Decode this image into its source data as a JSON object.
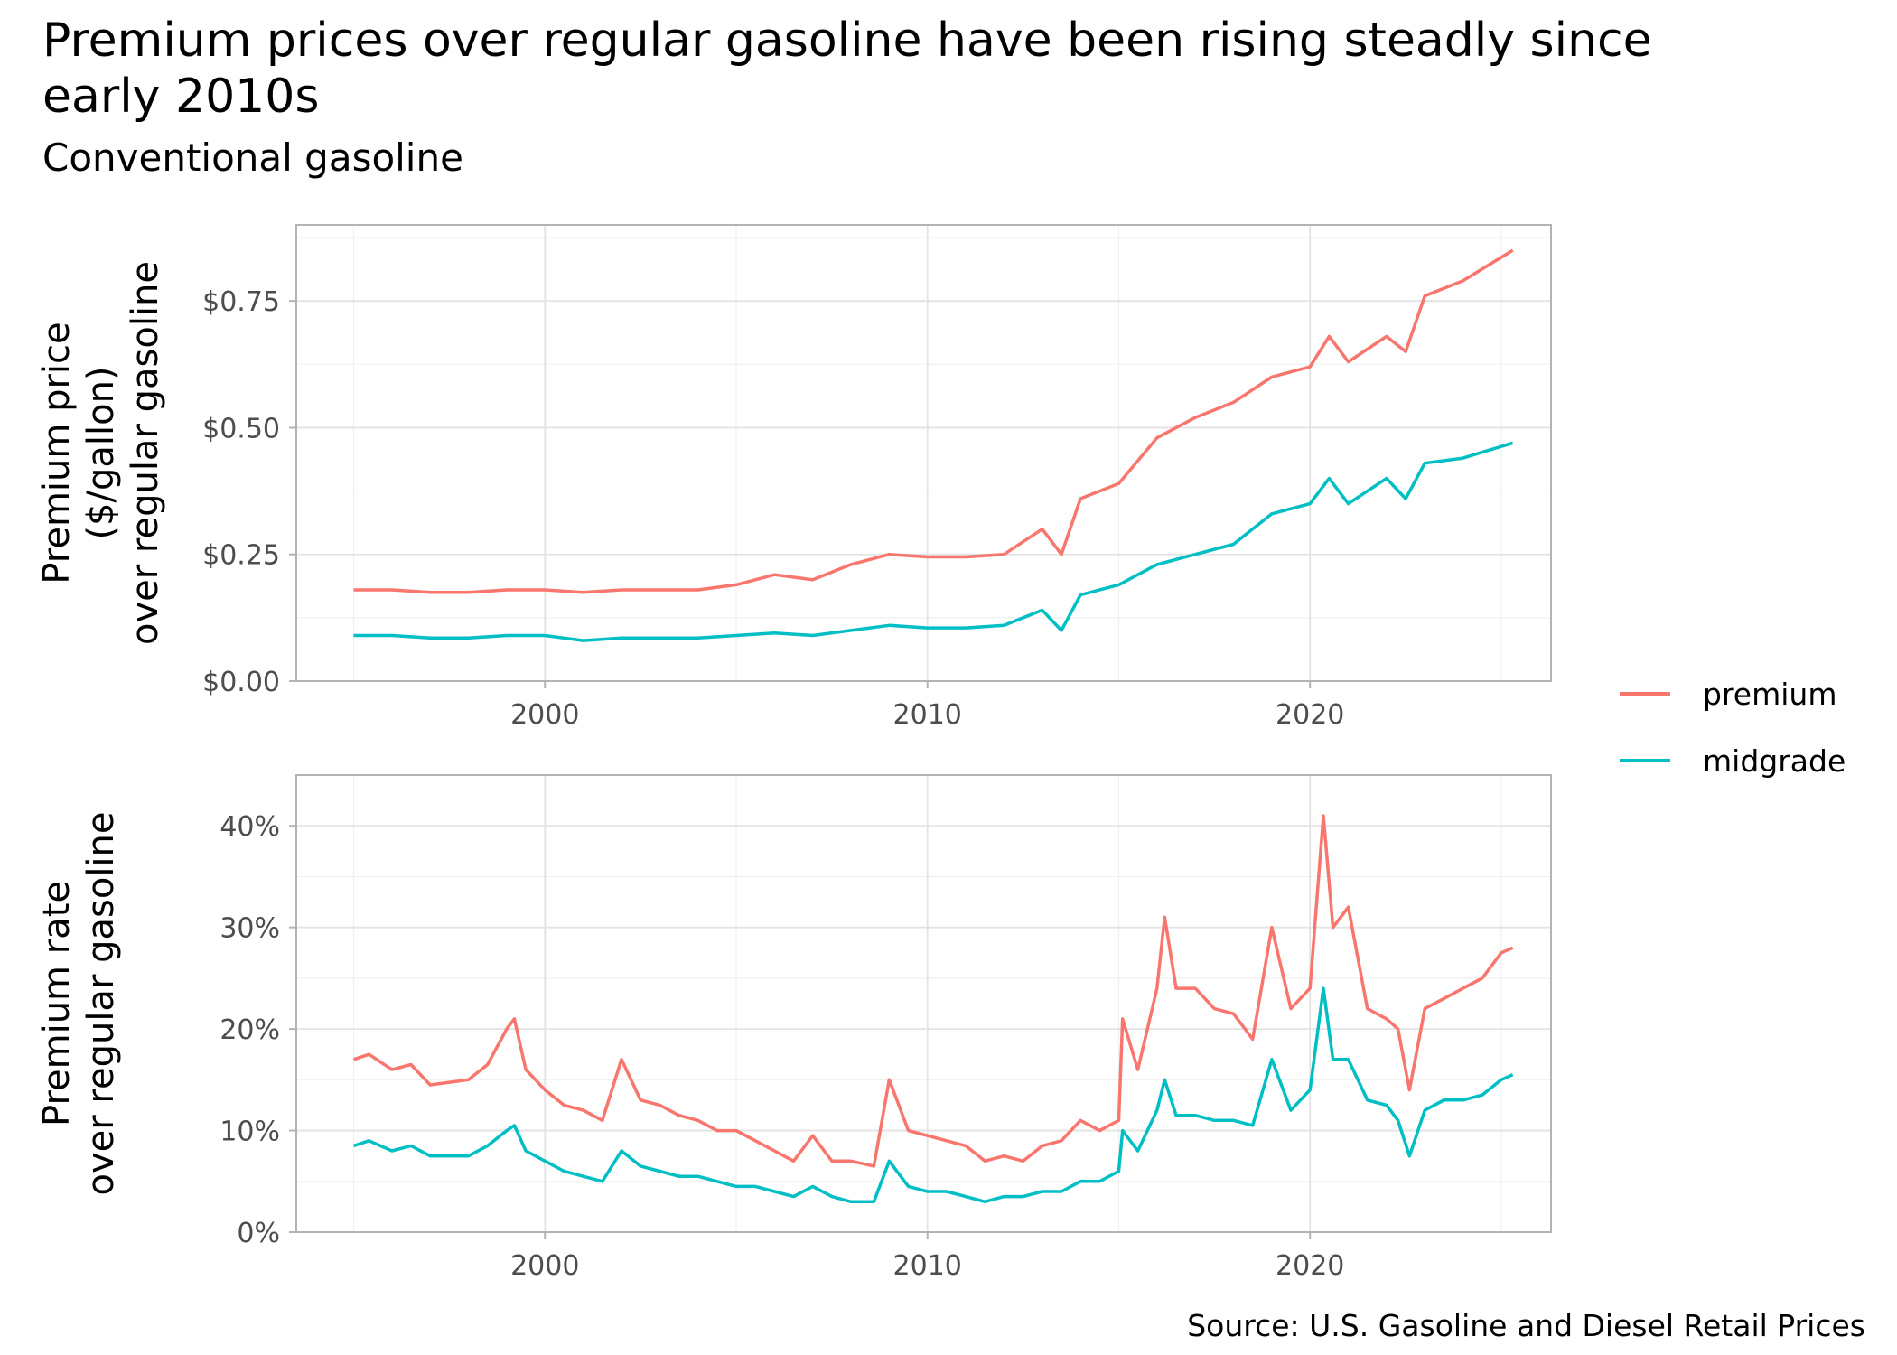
{
  "title": "Premium prices over regular gasoline have been rising steadly since early 2010s",
  "subtitle": "Conventional gasoline",
  "source": "Source: U.S. Gasoline and Diesel Retail Prices",
  "colors": {
    "premium": "#F8766D",
    "midgrade": "#00BFC4"
  },
  "legend": {
    "position": "right",
    "items": [
      "premium",
      "midgrade"
    ]
  },
  "chart_data": [
    {
      "type": "line",
      "ylabel": [
        "Premium price",
        "($/gallon)",
        "over regular gasoline"
      ],
      "xlim": [
        1993.5,
        2026.3
      ],
      "ylim": [
        0,
        0.9
      ],
      "xticks": [
        2000,
        2010,
        2020
      ],
      "xtick_labels": [
        "2000",
        "2010",
        "2020"
      ],
      "yticks": [
        0,
        0.25,
        0.5,
        0.75
      ],
      "ytick_labels": [
        "$0.00",
        "$0.25",
        "$0.50",
        "$0.75"
      ],
      "grid": true,
      "series": [
        {
          "name": "premium",
          "color": "#F8766D",
          "x": [
            1995.0,
            1996.0,
            1997.0,
            1998.0,
            1999.0,
            2000.0,
            2001.0,
            2002.0,
            2003.0,
            2004.0,
            2005.0,
            2006.0,
            2007.0,
            2008.0,
            2009.0,
            2010.0,
            2011.0,
            2012.0,
            2013.0,
            2013.5,
            2014.0,
            2015.0,
            2016.0,
            2017.0,
            2018.0,
            2019.0,
            2020.0,
            2020.5,
            2021.0,
            2022.0,
            2022.5,
            2023.0,
            2024.0,
            2025.3
          ],
          "y": [
            0.18,
            0.18,
            0.175,
            0.175,
            0.18,
            0.18,
            0.175,
            0.18,
            0.18,
            0.18,
            0.19,
            0.21,
            0.2,
            0.23,
            0.25,
            0.245,
            0.245,
            0.25,
            0.3,
            0.25,
            0.36,
            0.39,
            0.48,
            0.52,
            0.55,
            0.6,
            0.62,
            0.68,
            0.63,
            0.68,
            0.65,
            0.76,
            0.79,
            0.85
          ]
        },
        {
          "name": "midgrade",
          "color": "#00BFC4",
          "x": [
            1995.0,
            1996.0,
            1997.0,
            1998.0,
            1999.0,
            2000.0,
            2001.0,
            2002.0,
            2003.0,
            2004.0,
            2005.0,
            2006.0,
            2007.0,
            2008.0,
            2009.0,
            2010.0,
            2011.0,
            2012.0,
            2013.0,
            2013.5,
            2014.0,
            2015.0,
            2016.0,
            2017.0,
            2018.0,
            2019.0,
            2020.0,
            2020.5,
            2021.0,
            2022.0,
            2022.5,
            2023.0,
            2024.0,
            2025.3
          ],
          "y": [
            0.09,
            0.09,
            0.085,
            0.085,
            0.09,
            0.09,
            0.08,
            0.085,
            0.085,
            0.085,
            0.09,
            0.095,
            0.09,
            0.1,
            0.11,
            0.105,
            0.105,
            0.11,
            0.14,
            0.1,
            0.17,
            0.19,
            0.23,
            0.25,
            0.27,
            0.33,
            0.35,
            0.4,
            0.35,
            0.4,
            0.36,
            0.43,
            0.44,
            0.47
          ]
        }
      ]
    },
    {
      "type": "line",
      "ylabel": [
        "Premium rate",
        "over regular gasoline"
      ],
      "xlim": [
        1993.5,
        2026.3
      ],
      "ylim": [
        0,
        45
      ],
      "xticks": [
        2000,
        2010,
        2020
      ],
      "xtick_labels": [
        "2000",
        "2010",
        "2020"
      ],
      "yticks": [
        0,
        10,
        20,
        30,
        40
      ],
      "ytick_labels": [
        "0%",
        "10%",
        "20%",
        "30%",
        "40%"
      ],
      "grid": true,
      "series": [
        {
          "name": "premium",
          "color": "#F8766D",
          "x": [
            1995.0,
            1995.4,
            1996.0,
            1996.5,
            1997.0,
            1998.0,
            1998.5,
            1999.0,
            1999.2,
            1999.5,
            2000.0,
            2000.5,
            2001.0,
            2001.5,
            2002.0,
            2002.5,
            2003.0,
            2003.5,
            2004.0,
            2004.5,
            2005.0,
            2005.5,
            2006.0,
            2006.5,
            2007.0,
            2007.5,
            2008.0,
            2008.6,
            2009.0,
            2009.5,
            2010.0,
            2010.5,
            2011.0,
            2011.5,
            2012.0,
            2012.5,
            2013.0,
            2013.5,
            2014.0,
            2014.5,
            2015.0,
            2015.1,
            2015.5,
            2016.0,
            2016.2,
            2016.5,
            2017.0,
            2017.5,
            2018.0,
            2018.5,
            2019.0,
            2019.5,
            2020.0,
            2020.35,
            2020.6,
            2021.0,
            2021.5,
            2022.0,
            2022.3,
            2022.6,
            2023.0,
            2023.5,
            2024.0,
            2024.5,
            2025.0,
            2025.3
          ],
          "y": [
            17,
            17.5,
            16,
            16.5,
            14.5,
            15,
            16.5,
            20,
            21,
            16,
            14,
            12.5,
            12,
            11,
            17,
            13,
            12.5,
            11.5,
            11,
            10,
            10,
            9,
            8,
            7,
            9.5,
            7,
            7,
            6.5,
            15,
            10,
            9.5,
            9,
            8.5,
            7,
            7.5,
            7,
            8.5,
            9,
            11,
            10,
            11,
            21,
            16,
            24,
            31,
            24,
            24,
            22,
            21.5,
            19,
            30,
            22,
            24,
            41,
            30,
            32,
            22,
            21,
            20,
            14,
            22,
            23,
            24,
            25,
            27.5,
            28
          ]
        },
        {
          "name": "midgrade",
          "color": "#00BFC4",
          "x": [
            1995.0,
            1995.4,
            1996.0,
            1996.5,
            1997.0,
            1998.0,
            1998.5,
            1999.0,
            1999.2,
            1999.5,
            2000.0,
            2000.5,
            2001.0,
            2001.5,
            2002.0,
            2002.5,
            2003.0,
            2003.5,
            2004.0,
            2004.5,
            2005.0,
            2005.5,
            2006.0,
            2006.5,
            2007.0,
            2007.5,
            2008.0,
            2008.6,
            2009.0,
            2009.5,
            2010.0,
            2010.5,
            2011.0,
            2011.5,
            2012.0,
            2012.5,
            2013.0,
            2013.5,
            2014.0,
            2014.5,
            2015.0,
            2015.1,
            2015.5,
            2016.0,
            2016.2,
            2016.5,
            2017.0,
            2017.5,
            2018.0,
            2018.5,
            2019.0,
            2019.5,
            2020.0,
            2020.35,
            2020.6,
            2021.0,
            2021.5,
            2022.0,
            2022.3,
            2022.6,
            2023.0,
            2023.5,
            2024.0,
            2024.5,
            2025.0,
            2025.3
          ],
          "y": [
            8.5,
            9,
            8,
            8.5,
            7.5,
            7.5,
            8.5,
            10,
            10.5,
            8,
            7,
            6,
            5.5,
            5,
            8,
            6.5,
            6,
            5.5,
            5.5,
            5,
            4.5,
            4.5,
            4,
            3.5,
            4.5,
            3.5,
            3,
            3,
            7,
            4.5,
            4,
            4,
            3.5,
            3,
            3.5,
            3.5,
            4,
            4,
            5,
            5,
            6,
            10,
            8,
            12,
            15,
            11.5,
            11.5,
            11,
            11,
            10.5,
            17,
            12,
            14,
            24,
            17,
            17,
            13,
            12.5,
            11,
            7.5,
            12,
            13,
            13,
            13.5,
            15,
            15.5
          ]
        }
      ]
    }
  ]
}
